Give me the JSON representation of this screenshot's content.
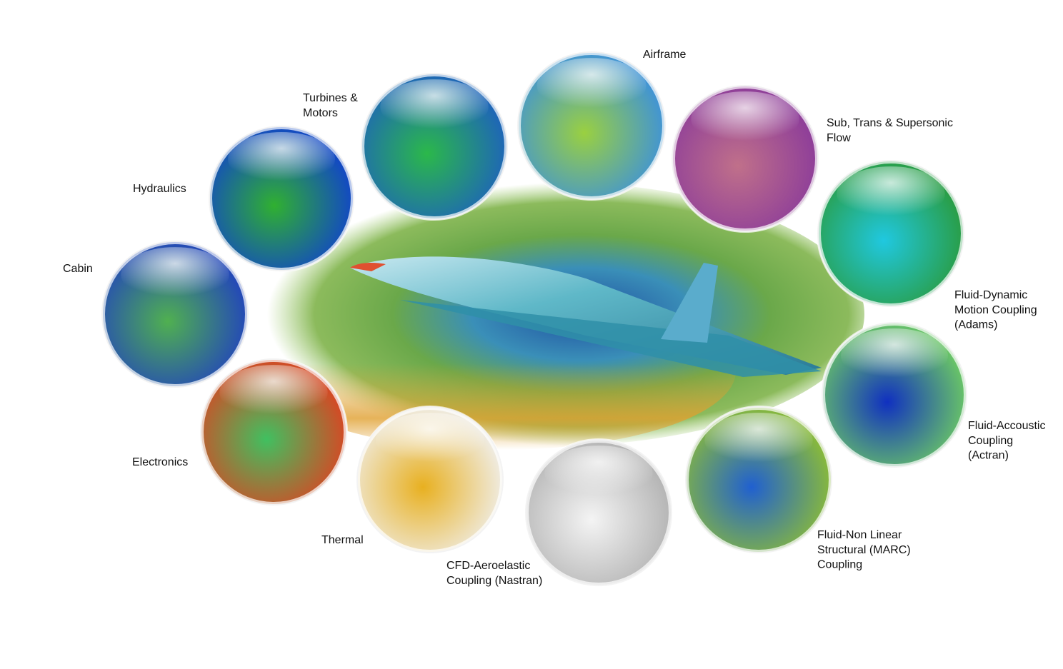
{
  "nodes": [
    {
      "label": [
        "Turbines &",
        "Motors"
      ]
    },
    {
      "label": [
        "Airframe"
      ]
    },
    {
      "label": [
        "Sub, Trans & Supersonic",
        "Flow"
      ]
    },
    {
      "label": [
        "Fluid-Dynamic",
        "Motion Coupling",
        "(Adams)"
      ]
    },
    {
      "label": [
        "Fluid-Accoustic",
        "Coupling",
        "(Actran)"
      ]
    },
    {
      "label": [
        "Fluid-Non Linear",
        "Structural (MARC)",
        "Coupling"
      ]
    },
    {
      "label": [
        "CFD-Aeroelastic",
        "Coupling (Nastran)"
      ]
    },
    {
      "label": [
        "Thermal"
      ]
    },
    {
      "label": [
        "Electronics"
      ]
    },
    {
      "label": [
        "Cabin"
      ]
    },
    {
      "label": [
        "Hydraulics"
      ]
    }
  ]
}
